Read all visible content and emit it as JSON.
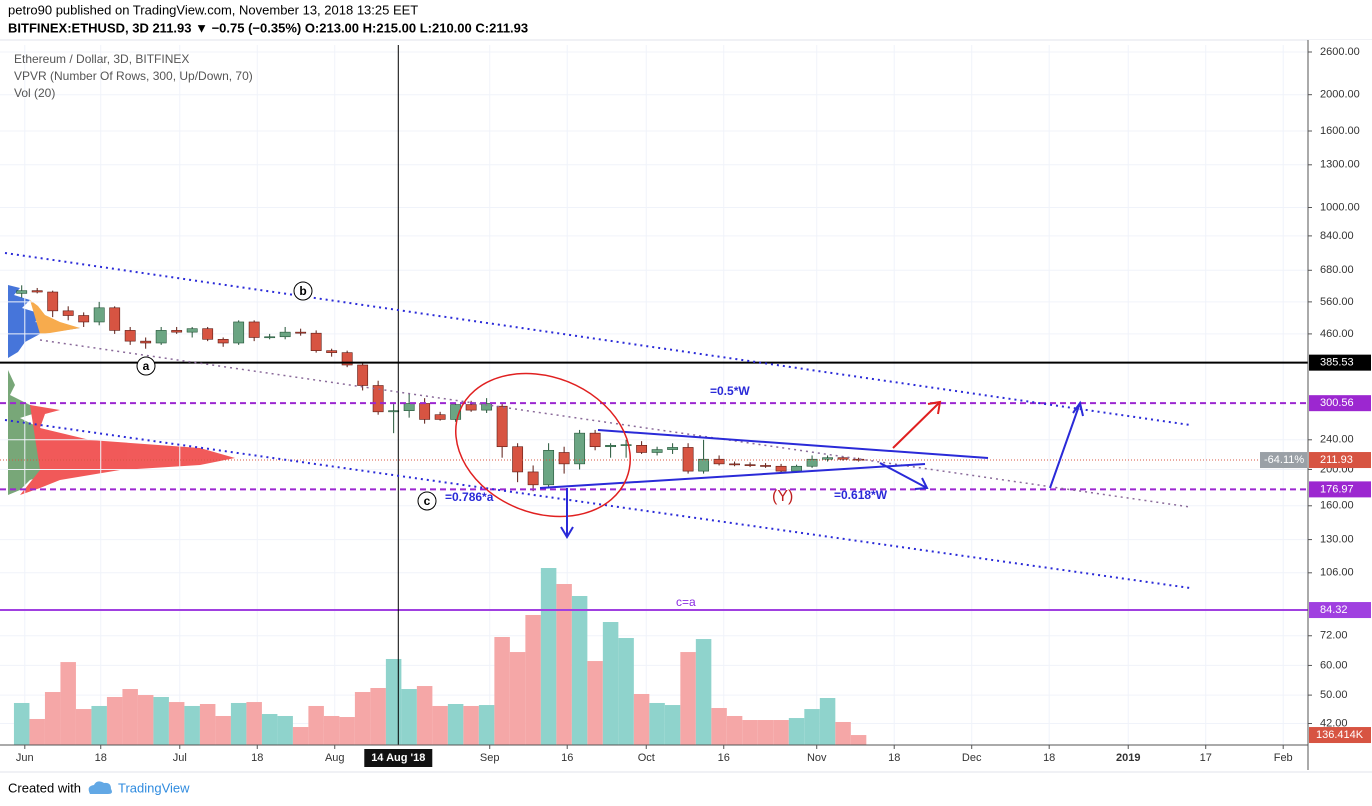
{
  "header": {
    "published": "petro90 published on TradingView.com, November 13, 2018 13:25 EET",
    "quote": "BITFINEX:ETHUSD, 3D 211.93 ▼ −0.75 (−0.35%) O:213.00 H:215.00 L:210.00 C:211.93"
  },
  "chart_data": {
    "type": "candlestick",
    "legend": [
      "Ethereum / Dollar, 3D, BITFINEX",
      "VPVR (Number Of Rows, 300, Up/Down, 70)",
      "Vol (20)"
    ],
    "log_scale": true,
    "ylim": [
      36.8,
      2714
    ],
    "yticks": [
      {
        "value": 2600,
        "label": "2600.00"
      },
      {
        "value": 2000,
        "label": "2000.00"
      },
      {
        "value": 1600,
        "label": "1600.00"
      },
      {
        "value": 1300,
        "label": "1300.00"
      },
      {
        "value": 1000,
        "label": "1000.00"
      },
      {
        "value": 840,
        "label": "840.00"
      },
      {
        "value": 680,
        "label": "680.00"
      },
      {
        "value": 560,
        "label": "560.00"
      },
      {
        "value": 460,
        "label": "460.00"
      },
      {
        "value": 240,
        "label": "240.00"
      },
      {
        "value": 200,
        "label": "200.00"
      },
      {
        "value": 160,
        "label": "160.00"
      },
      {
        "value": 130,
        "label": "130.00"
      },
      {
        "value": 106,
        "label": "106.00"
      },
      {
        "value": 72,
        "label": "72.00"
      },
      {
        "value": 60,
        "label": "60.00"
      },
      {
        "value": 50,
        "label": "50.00"
      },
      {
        "value": 42,
        "label": "42.00"
      }
    ],
    "xlim": [
      -1.4,
      83
    ],
    "xticks": [
      {
        "value": 0.2,
        "label": "Jun"
      },
      {
        "value": 5.1,
        "label": "18"
      },
      {
        "value": 10.2,
        "label": "Jul"
      },
      {
        "value": 15.2,
        "label": "18"
      },
      {
        "value": 20.2,
        "label": "Aug"
      },
      {
        "value": 30.2,
        "label": "Sep"
      },
      {
        "value": 35.2,
        "label": "16"
      },
      {
        "value": 40.3,
        "label": "Oct"
      },
      {
        "value": 45.3,
        "label": "16"
      },
      {
        "value": 51.3,
        "label": "Nov"
      },
      {
        "value": 56.3,
        "label": "18"
      },
      {
        "value": 61.3,
        "label": "Dec"
      },
      {
        "value": 66.3,
        "label": "18"
      },
      {
        "value": 71.4,
        "label": "2019"
      },
      {
        "value": 76.4,
        "label": "17"
      },
      {
        "value": 81.4,
        "label": "Feb"
      }
    ],
    "crosshair": {
      "value": 24.3,
      "label": "14 Aug '18"
    },
    "up_color": "#6ba583",
    "down_color": "#d75442",
    "open": [
      590,
      600,
      595,
      530,
      515,
      495,
      540,
      470,
      440,
      435,
      470,
      465,
      475,
      445,
      435,
      495,
      450,
      452,
      465,
      462,
      415,
      410,
      380,
      335,
      285,
      287,
      300,
      280,
      272,
      298,
      288,
      295,
      230,
      197,
      182,
      222,
      207,
      250,
      230,
      232,
      232,
      222,
      226,
      229,
      198,
      213,
      207,
      206,
      205,
      204,
      198,
      204,
      213,
      215,
      213
    ],
    "high": [
      620,
      610,
      600,
      545,
      525,
      560,
      545,
      480,
      450,
      480,
      480,
      480,
      480,
      450,
      500,
      500,
      460,
      480,
      475,
      470,
      420,
      415,
      385,
      345,
      300,
      320,
      310,
      285,
      300,
      305,
      310,
      300,
      235,
      205,
      235,
      230,
      255,
      255,
      235,
      240,
      238,
      230,
      235,
      235,
      240,
      218,
      210,
      209,
      208,
      207,
      206,
      218,
      218,
      217,
      215
    ],
    "low": [
      575,
      590,
      510,
      500,
      480,
      485,
      460,
      430,
      420,
      430,
      460,
      450,
      440,
      425,
      430,
      440,
      445,
      445,
      455,
      410,
      400,
      375,
      325,
      280,
      250,
      275,
      265,
      270,
      268,
      285,
      283,
      215,
      185,
      175,
      178,
      195,
      200,
      225,
      215,
      215,
      220,
      218,
      220,
      195,
      195,
      205,
      204,
      203,
      202,
      196,
      196,
      202,
      210,
      211,
      210
    ],
    "close": [
      600,
      595,
      530,
      515,
      495,
      540,
      470,
      440,
      435,
      470,
      465,
      475,
      445,
      435,
      495,
      450,
      452,
      465,
      462,
      415,
      410,
      380,
      335,
      285,
      287,
      300,
      272,
      272,
      298,
      288,
      300,
      230,
      197,
      182,
      225,
      207,
      250,
      230,
      232,
      233,
      222,
      226,
      229,
      198,
      213,
      207,
      206,
      205,
      204,
      198,
      204,
      213,
      215,
      213,
      211.93
    ],
    "volume": [
      575,
      356,
      725,
      1135,
      492,
      534,
      657,
      766,
      684,
      657,
      588,
      534,
      561,
      397,
      575,
      588,
      424,
      397,
      246,
      534,
      397,
      383,
      725,
      780,
      1177,
      766,
      807,
      534,
      561,
      534,
      547,
      1478,
      1272,
      1779,
      2422,
      2203,
      2039,
      1149,
      1683,
      1464,
      698,
      575,
      547,
      1272,
      1450,
      506,
      397,
      342,
      342,
      342,
      369,
      492,
      643,
      315,
      136.414
    ],
    "vlim": [
      0,
      2600
    ],
    "volume_up_color": "#8fd3cc",
    "volume_down_color": "#f5a7a7",
    "last_volume_label": "136.414K",
    "change_label": "-64.11%",
    "levels": [
      {
        "value": 385.53,
        "color": "#000000",
        "style": "solid"
      },
      {
        "value": 300.56,
        "color": "#9c27d0",
        "style": "dashed"
      },
      {
        "value": 211.93,
        "color": "#d75442",
        "style": "dotted"
      },
      {
        "value": 176.97,
        "color": "#9c27d0",
        "style": "dashed"
      },
      {
        "value": 84.32,
        "color": "#a040e0",
        "style": "solid"
      }
    ],
    "annotations": [
      "b",
      "a",
      "c",
      "=0.5*W",
      "=0.618*W",
      "=0.786*a",
      "(Y)",
      "c=a"
    ]
  },
  "footer": {
    "created": "Created with",
    "brand": "TradingView"
  }
}
